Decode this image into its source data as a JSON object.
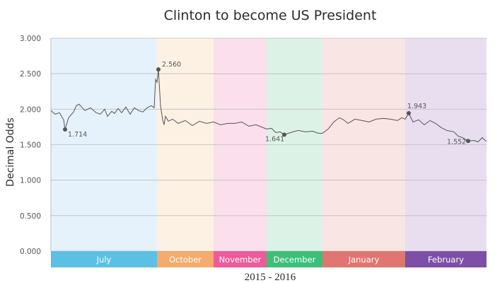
{
  "chart_data": {
    "type": "line",
    "title": "Clinton to become US President",
    "xlabel": "2015 - 2016",
    "ylabel": "Decimal Odds",
    "ylim": [
      0,
      3
    ],
    "y_ticks": [
      "0.000",
      "0.500",
      "1.000",
      "1.500",
      "2.000",
      "2.500",
      "3.000"
    ],
    "grid": true,
    "months": [
      {
        "label": "July",
        "start": 0,
        "end": 150,
        "band": "#e6f2fb",
        "bar": "#5bc0e4"
      },
      {
        "label": "October",
        "start": 150,
        "end": 230,
        "band": "#fdf1e4",
        "bar": "#f4ab6d"
      },
      {
        "label": "November",
        "start": 230,
        "end": 305,
        "band": "#fbdfec",
        "bar": "#ee5b9a"
      },
      {
        "label": "December",
        "start": 305,
        "end": 384,
        "band": "#ddf2e7",
        "bar": "#3dbf79"
      },
      {
        "label": "January",
        "start": 384,
        "end": 501,
        "band": "#f9e5e4",
        "bar": "#e07670"
      },
      {
        "label": "February",
        "start": 501,
        "end": 616,
        "band": "#e8def0",
        "bar": "#7d4fa6"
      }
    ],
    "series": [
      {
        "x": [
          0,
          6,
          12,
          18,
          20,
          25,
          32,
          36,
          40,
          48,
          56,
          64,
          70,
          76,
          80,
          86,
          90,
          95,
          100,
          106,
          112,
          118,
          124,
          130,
          136,
          142,
          146,
          148,
          150,
          152,
          155,
          158,
          160,
          162,
          166,
          172,
          180,
          190,
          200,
          210,
          220,
          230,
          240,
          250,
          260,
          270,
          280,
          290,
          300,
          305,
          312,
          318,
          324,
          330,
          336,
          342,
          350,
          360,
          370,
          378,
          384,
          392,
          400,
          408,
          414,
          420,
          430,
          440,
          450,
          460,
          470,
          480,
          490,
          496,
          501,
          506,
          512,
          520,
          528,
          536,
          544,
          552,
          560,
          570,
          576,
          582,
          590,
          598,
          604,
          610,
          614,
          616
        ],
        "y": [
          1.98,
          1.93,
          1.95,
          1.85,
          1.714,
          1.88,
          1.96,
          2.05,
          2.07,
          1.98,
          2.02,
          1.95,
          1.93,
          2.0,
          1.9,
          1.97,
          1.94,
          2.01,
          1.95,
          2.03,
          1.93,
          2.02,
          1.98,
          1.96,
          2.02,
          2.05,
          2.02,
          2.42,
          2.38,
          2.56,
          2.05,
          1.85,
          1.78,
          1.9,
          1.83,
          1.86,
          1.8,
          1.84,
          1.77,
          1.83,
          1.8,
          1.82,
          1.78,
          1.8,
          1.8,
          1.82,
          1.76,
          1.78,
          1.74,
          1.72,
          1.73,
          1.67,
          1.68,
          1.641,
          1.66,
          1.68,
          1.7,
          1.68,
          1.69,
          1.66,
          1.66,
          1.72,
          1.82,
          1.88,
          1.85,
          1.8,
          1.86,
          1.84,
          1.82,
          1.86,
          1.87,
          1.86,
          1.84,
          1.88,
          1.86,
          1.943,
          1.82,
          1.85,
          1.78,
          1.84,
          1.8,
          1.74,
          1.7,
          1.68,
          1.62,
          1.6,
          1.552,
          1.56,
          1.54,
          1.6,
          1.56,
          1.55
        ]
      }
    ],
    "annotations": [
      {
        "x": 20,
        "y": 1.714,
        "label": "1.714"
      },
      {
        "x": 152,
        "y": 2.56,
        "label": "2.560"
      },
      {
        "x": 330,
        "y": 1.641,
        "label": "1.641"
      },
      {
        "x": 506,
        "y": 1.943,
        "label": "1.943"
      },
      {
        "x": 590,
        "y": 1.552,
        "label": "1.552"
      }
    ]
  }
}
